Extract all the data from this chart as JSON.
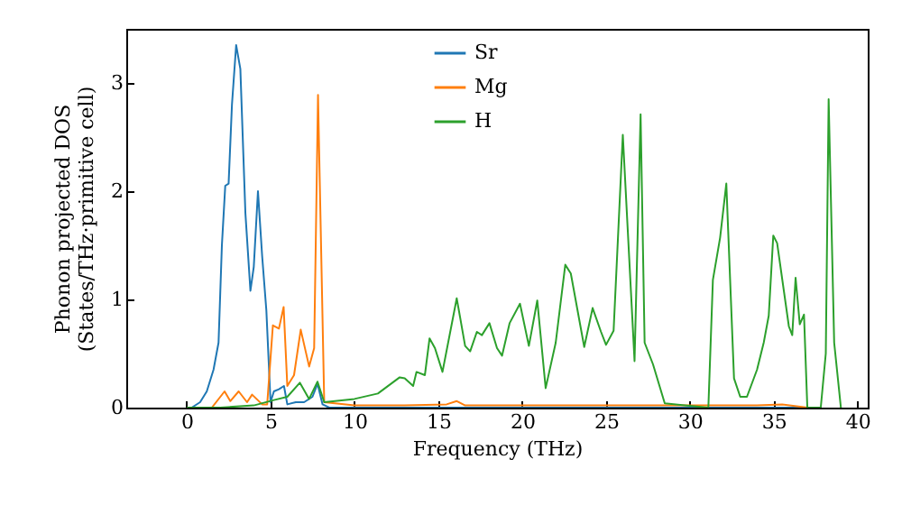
{
  "chart_data": {
    "type": "line",
    "xlabel": "Frequency (THz)",
    "ylabel": "Phonon projected DOS\n(States/THz·primitive cell)",
    "xlim": [
      -3.6,
      40.6
    ],
    "ylim": [
      0,
      3.5
    ],
    "xticks": [
      0,
      5,
      10,
      15,
      20,
      25,
      30,
      35,
      40
    ],
    "yticks": [
      0,
      1,
      2,
      3
    ],
    "grid": false,
    "legend": "top",
    "series": [
      {
        "name": "Sr",
        "color": "#1f77b4",
        "x": [
          0,
          0.3,
          0.8,
          1.2,
          1.6,
          1.9,
          2.1,
          2.3,
          2.5,
          2.7,
          2.95,
          3.2,
          3.5,
          3.8,
          4.0,
          4.25,
          4.5,
          4.75,
          5.0,
          5.2,
          5.5,
          5.8,
          6.0,
          6.5,
          7.0,
          7.5,
          7.8,
          8.1,
          8.5,
          10,
          15,
          20,
          25,
          30,
          37
        ],
        "values": [
          0,
          0,
          0.05,
          0.15,
          0.35,
          0.6,
          1.5,
          2.05,
          2.07,
          2.8,
          3.35,
          3.13,
          1.8,
          1.08,
          1.3,
          2.0,
          1.4,
          0.9,
          0.05,
          0.15,
          0.17,
          0.2,
          0.03,
          0.05,
          0.05,
          0.1,
          0.22,
          0.03,
          0,
          0,
          0,
          0,
          0,
          0,
          0
        ]
      },
      {
        "name": "Mg",
        "color": "#ff7f0e",
        "x": [
          0,
          1.5,
          2.26,
          2.6,
          3.1,
          3.6,
          3.9,
          4.5,
          4.8,
          5.14,
          5.5,
          5.78,
          6.0,
          6.4,
          6.8,
          7.3,
          7.6,
          7.83,
          8.2,
          10,
          13,
          15.5,
          16.1,
          16.6,
          20,
          25,
          30,
          34,
          35.5,
          37
        ],
        "values": [
          0,
          0,
          0.15,
          0.06,
          0.15,
          0.05,
          0.12,
          0.03,
          0.03,
          0.76,
          0.73,
          0.93,
          0.2,
          0.3,
          0.72,
          0.38,
          0.55,
          2.89,
          0.05,
          0.02,
          0.02,
          0.03,
          0.06,
          0.02,
          0.02,
          0.02,
          0.02,
          0.02,
          0.03,
          0
        ]
      },
      {
        "name": "H",
        "color": "#2ca02c",
        "x": [
          0,
          2,
          4,
          5.2,
          6.0,
          6.75,
          7.3,
          7.8,
          8.2,
          10,
          11.4,
          12.7,
          13.0,
          13.5,
          13.7,
          14.2,
          14.48,
          14.8,
          15.25,
          16.1,
          16.6,
          16.9,
          17.3,
          17.6,
          18.05,
          18.5,
          18.8,
          19.25,
          19.87,
          20.4,
          20.9,
          21.4,
          22.0,
          22.57,
          22.9,
          23.7,
          24.2,
          24.7,
          25.0,
          25.45,
          26.0,
          26.7,
          27.06,
          27.3,
          27.8,
          28.5,
          31.1,
          31.37,
          31.8,
          32.17,
          32.63,
          33.0,
          33.4,
          34.0,
          34.4,
          34.7,
          34.97,
          35.2,
          35.9,
          36.1,
          36.3,
          36.55,
          36.8,
          37.0,
          37.8,
          38.1,
          38.27,
          38.6,
          39.0
        ],
        "values": [
          0,
          0,
          0.02,
          0.07,
          0.1,
          0.23,
          0.08,
          0.24,
          0.05,
          0.08,
          0.13,
          0.28,
          0.27,
          0.2,
          0.33,
          0.3,
          0.64,
          0.55,
          0.33,
          1.01,
          0.57,
          0.52,
          0.7,
          0.67,
          0.78,
          0.55,
          0.48,
          0.78,
          0.96,
          0.57,
          0.99,
          0.18,
          0.6,
          1.32,
          1.24,
          0.56,
          0.92,
          0.7,
          0.58,
          0.71,
          2.52,
          0.43,
          2.71,
          0.6,
          0.4,
          0.04,
          0,
          1.18,
          1.57,
          2.07,
          0.27,
          0.1,
          0.1,
          0.35,
          0.6,
          0.85,
          1.59,
          1.52,
          0.75,
          0.67,
          1.2,
          0.77,
          0.86,
          0,
          0,
          0.5,
          2.85,
          0.6,
          0
        ]
      }
    ]
  }
}
